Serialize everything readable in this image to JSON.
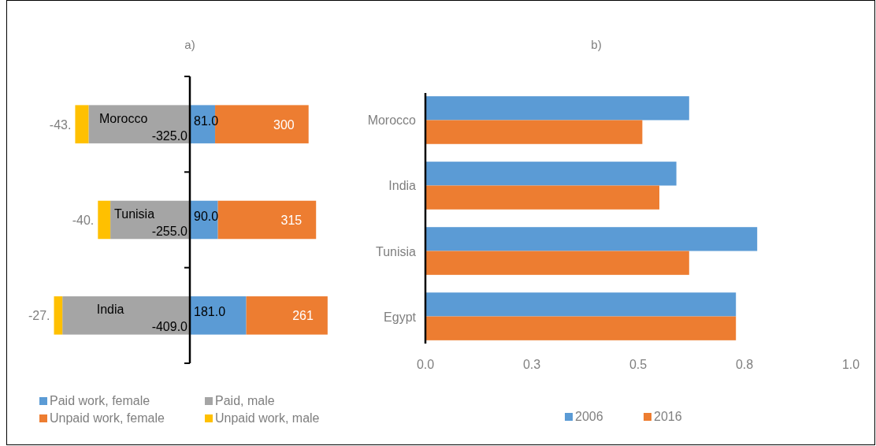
{
  "chart_data": [
    {
      "type": "bar",
      "title": "a)",
      "orientation": "horizontal",
      "stacked": true,
      "categories": [
        "Morocco",
        "Tunisia",
        "India"
      ],
      "legend": "bottom",
      "series": [
        {
          "name": "Paid work, female",
          "color": "#5b9bd5",
          "values": [
            81,
            90,
            181
          ],
          "value_labels": [
            "81.0",
            "90.0",
            "181.0"
          ]
        },
        {
          "name": "Paid, male",
          "color": "#a5a5a5",
          "values": [
            -325,
            -255,
            -409
          ],
          "value_labels": [
            "-325.0",
            "-255.0",
            "-409.0"
          ]
        },
        {
          "name": "Unpaid work, female",
          "color": "#ed7d31",
          "values": [
            300,
            315,
            261
          ],
          "value_labels": [
            "300",
            "315",
            "261"
          ]
        },
        {
          "name": "Unpaid work, male",
          "color": "#ffc000",
          "values": [
            -43,
            -40,
            -27
          ],
          "value_labels": [
            "-43.",
            "-40.",
            "-27."
          ]
        }
      ]
    },
    {
      "type": "bar",
      "title": "b)",
      "orientation": "horizontal",
      "categories": [
        "Morocco",
        "India",
        "Tunisia",
        "Egypt"
      ],
      "xlim": [
        0,
        1
      ],
      "xticks": [
        {
          "value": 0,
          "label": "0.0"
        },
        {
          "value": 0.25,
          "label": "0.3"
        },
        {
          "value": 0.5,
          "label": "0.5"
        },
        {
          "value": 0.75,
          "label": "0.8"
        },
        {
          "value": 1,
          "label": "1.0"
        }
      ],
      "legend": "bottom",
      "series": [
        {
          "name": "2006",
          "color": "#5b9bd5",
          "values": [
            0.62,
            0.59,
            0.78,
            0.73
          ]
        },
        {
          "name": "2016",
          "color": "#ed7d31",
          "values": [
            0.51,
            0.55,
            0.62,
            0.73
          ]
        }
      ]
    }
  ]
}
